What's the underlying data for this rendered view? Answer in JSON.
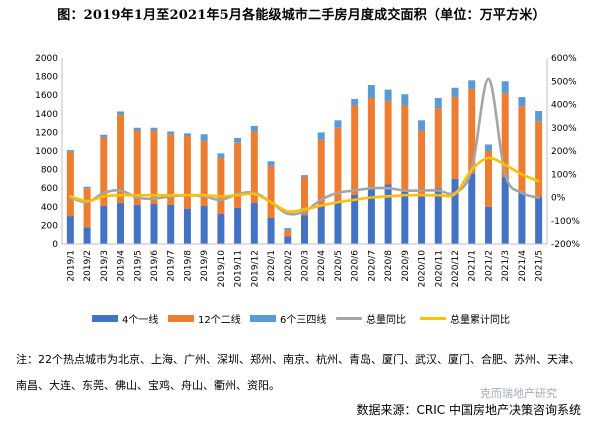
{
  "chart_data": {
    "type": "bar",
    "title": "图：2019年1月至2021年5月各能级城市二手房月度成交面积（单位：万平方米）",
    "categories": [
      "2019/1",
      "2019/2",
      "2019/3",
      "2019/4",
      "2019/5",
      "2019/6",
      "2019/7",
      "2019/8",
      "2019/9",
      "2019/10",
      "2019/11",
      "2019/12",
      "2020/1",
      "2020/2",
      "2020/3",
      "2020/4",
      "2020/5",
      "2020/6",
      "2020/7",
      "2020/8",
      "2020/9",
      "2020/10",
      "2020/11",
      "2020/12",
      "2021/1",
      "2021/2",
      "2021/3",
      "2021/4",
      "2021/5"
    ],
    "stacked": true,
    "series": [
      {
        "name": "4个一线",
        "axis": "left",
        "color": "#4472c4",
        "values": [
          300,
          180,
          410,
          440,
          420,
          430,
          420,
          380,
          410,
          325,
          390,
          440,
          280,
          80,
          310,
          420,
          470,
          530,
          610,
          640,
          560,
          520,
          600,
          700,
          760,
          400,
          720,
          560,
          510
        ]
      },
      {
        "name": "12个二线",
        "axis": "left",
        "color": "#ed7d31",
        "values": [
          690,
          420,
          740,
          950,
          800,
          790,
          760,
          780,
          700,
          600,
          700,
          770,
          560,
          70,
          410,
          700,
          780,
          960,
          960,
          900,
          930,
          700,
          860,
          880,
          910,
          600,
          900,
          920,
          810
        ]
      },
      {
        "name": "6个三四线",
        "axis": "left",
        "color": "#5b9bd5",
        "values": [
          20,
          15,
          25,
          35,
          30,
          30,
          30,
          30,
          70,
          50,
          50,
          60,
          50,
          20,
          20,
          80,
          80,
          70,
          140,
          120,
          120,
          110,
          110,
          100,
          90,
          70,
          130,
          100,
          110
        ]
      },
      {
        "name": "总量同比",
        "type": "line",
        "axis": "right",
        "color": "#a5a5a5",
        "values": [
          0,
          -20,
          20,
          30,
          0,
          -5,
          5,
          10,
          5,
          -10,
          15,
          20,
          -20,
          -70,
          -60,
          -10,
          20,
          30,
          40,
          40,
          30,
          30,
          30,
          20,
          120,
          510,
          100,
          20,
          0
        ]
      },
      {
        "name": "总量累计同比",
        "type": "line",
        "axis": "right",
        "color": "#ffc000",
        "values": [
          5,
          -15,
          5,
          10,
          10,
          10,
          10,
          10,
          10,
          5,
          10,
          15,
          -20,
          -60,
          -50,
          -35,
          -20,
          -10,
          0,
          5,
          10,
          10,
          10,
          15,
          120,
          170,
          140,
          100,
          70
        ]
      }
    ],
    "ylim_left": [
      0,
      2000
    ],
    "ylim_right": [
      -200,
      600
    ],
    "yticks_left": [
      "0",
      "200",
      "400",
      "600",
      "800",
      "1000",
      "1200",
      "1400",
      "1600",
      "1800",
      "2000"
    ],
    "yticks_right": [
      "-200%",
      "-100%",
      "0%",
      "100%",
      "200%",
      "300%",
      "400%",
      "500%",
      "600%"
    ],
    "legend_position": "bottom",
    "grid": false
  },
  "legend": {
    "items": [
      "4个一线",
      "12个二线",
      "6个三四线",
      "总量同比",
      "总量累计同比"
    ]
  },
  "note": "注：22个热点城市为北京、上海、广州、深圳、郑州、南京、杭州、青岛、厦门、武汉、厦门、合肥、苏州、天津、南昌、大连、东莞、佛山、宝鸡、舟山、衢州、资阳。",
  "source": "数据来源：CRIC 中国房地产决策咨询系统",
  "watermark": "克而瑞地产研究"
}
